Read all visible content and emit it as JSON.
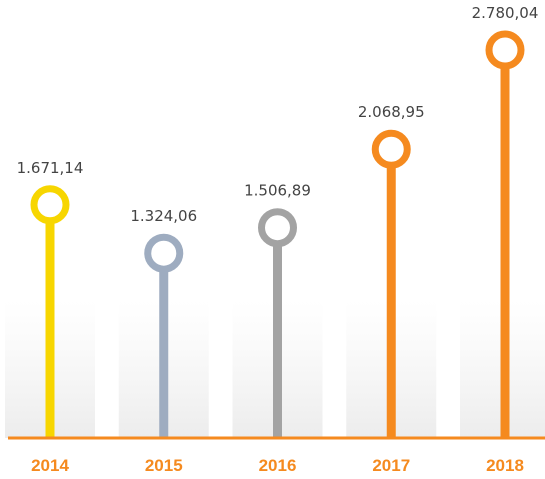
{
  "chart_data": {
    "type": "lollipop",
    "categories": [
      "2014",
      "2015",
      "2016",
      "2017",
      "2018"
    ],
    "values": [
      1671.14,
      1324.06,
      1506.89,
      2068.95,
      2780.04
    ],
    "value_labels": [
      "1.671,14",
      "1.324,06",
      "1.506,89",
      "2.068,95",
      "2.780,04"
    ],
    "colors": [
      "#f7d600",
      "#9eacc0",
      "#a3a3a3",
      "#f58a1f",
      "#f58a1f"
    ],
    "axis_color": "#f58a1f"
  }
}
